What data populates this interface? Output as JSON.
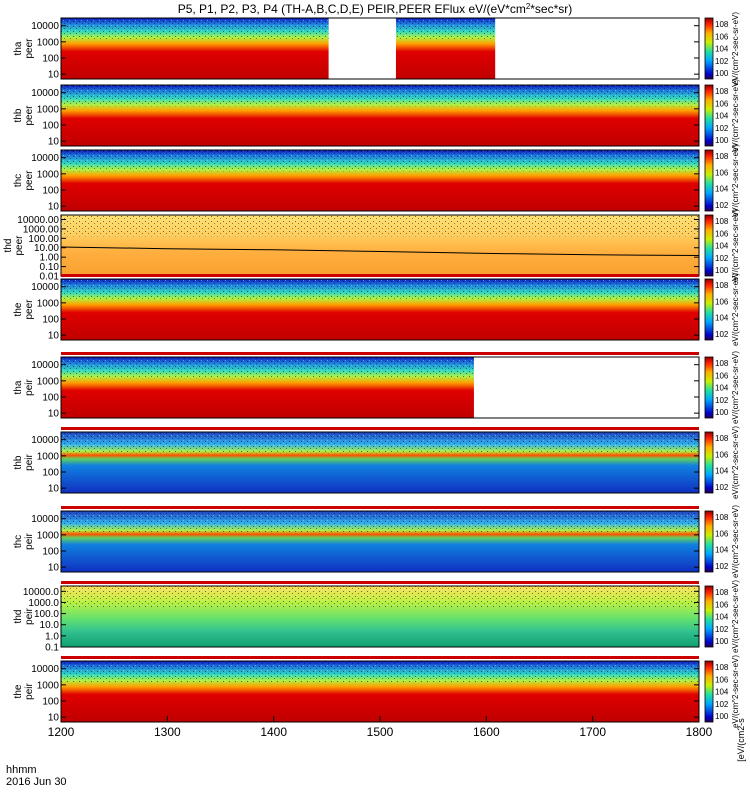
{
  "title": "P5, P1, P2, P3, P4 (TH-A,B,C,D,E) PEIR,PEER EFlux eV/(eV*cm",
  "title_sup": "2",
  "title_tail": "*sec*sr)",
  "colorbar_title": "eV/(cm^2-sec-sr-eV)",
  "colorbar_units_bottom": "[eV/(cm2-s",
  "time_axis": {
    "label_line1": "hhmm",
    "label_line2": "2016 Jun 30",
    "ticks": [
      "1200",
      "1300",
      "1400",
      "1500",
      "1600",
      "1700",
      "1800"
    ]
  },
  "colors": {
    "background": "#ffffff",
    "saturated": "#cc0000",
    "jet_low": "#00008b",
    "jet_high": "#8b0000"
  },
  "chart_data": {
    "type": "heatmap",
    "x_range": [
      "12:00",
      "18:00"
    ],
    "panels": [
      {
        "id": "tha_peer",
        "ylabel": [
          "tha",
          "peer"
        ],
        "yticks": [
          "10",
          "100",
          "1000",
          "10000"
        ],
        "ylim": [
          5,
          30000
        ],
        "scale": "log",
        "colorbar": {
          "ticks": [
            "10^8",
            "10^6",
            "10^4",
            "10^2",
            "10^0"
          ],
          "range": [
            "10^0",
            "10^8"
          ]
        },
        "data_gaps": [
          [
            "14:31",
            "15:09"
          ],
          [
            "16:05",
            "18:00"
          ]
        ],
        "has_flag_bar": false
      },
      {
        "id": "thb_peer",
        "ylabel": [
          "thb",
          "peer"
        ],
        "yticks": [
          "10",
          "100",
          "1000",
          "10000"
        ],
        "ylim": [
          5,
          30000
        ],
        "scale": "log",
        "colorbar": {
          "ticks": [
            "10^8",
            "10^6",
            "10^4",
            "10^2",
            "10^0"
          ],
          "range": [
            "10^0",
            "10^8"
          ]
        },
        "data_gaps": [],
        "has_flag_bar": false
      },
      {
        "id": "thc_peer",
        "ylabel": [
          "thc",
          "peer"
        ],
        "yticks": [
          "10",
          "100",
          "1000",
          "10000"
        ],
        "ylim": [
          5,
          30000
        ],
        "scale": "log",
        "colorbar": {
          "ticks": [
            "10^8",
            "10^6",
            "10^4",
            "10^2"
          ],
          "range": [
            "10^2",
            "10^8"
          ]
        },
        "data_gaps": [],
        "has_flag_bar": false
      },
      {
        "id": "thd_peer",
        "ylabel": [
          "thd",
          "peer"
        ],
        "yticks": [
          "0.01",
          "0.10",
          "1.00",
          "10.00",
          "100.00",
          "1000.00",
          "10000.00"
        ],
        "ylim": [
          0.01,
          30000
        ],
        "scale": "log",
        "colorbar": {
          "ticks": [
            "10^8",
            "10^6",
            "10^4",
            "10^2",
            "10^0"
          ],
          "range": [
            "10^0",
            "10^8"
          ]
        },
        "data_gaps": [],
        "has_flag_bar": false,
        "overlay_line": {
          "x": [
            "12:00",
            "13:00",
            "14:00",
            "15:00",
            "16:00",
            "17:00",
            "18:00"
          ],
          "y": [
            12,
            8,
            6,
            4,
            2.5,
            1.8,
            1.5
          ]
        }
      },
      {
        "id": "the_peer",
        "ylabel": [
          "the",
          "peer"
        ],
        "yticks": [
          "10",
          "100",
          "1000",
          "10000"
        ],
        "ylim": [
          5,
          30000
        ],
        "scale": "log",
        "colorbar": {
          "ticks": [
            "10^8",
            "10^6",
            "10^4",
            "10^2"
          ],
          "range": [
            "10^2",
            "10^8"
          ]
        },
        "data_gaps": [],
        "has_flag_bar": true
      },
      {
        "id": "tha_peir",
        "ylabel": [
          "tha",
          "peir"
        ],
        "yticks": [
          "10",
          "100",
          "1000",
          "10000"
        ],
        "ylim": [
          5,
          30000
        ],
        "scale": "log",
        "colorbar": {
          "ticks": [
            "10^8",
            "10^6",
            "10^4",
            "10^2",
            "10^0"
          ],
          "range": [
            "10^0",
            "10^8"
          ]
        },
        "data_gaps": [
          [
            "15:53",
            "18:00"
          ]
        ],
        "has_flag_bar": true
      },
      {
        "id": "thb_peir",
        "ylabel": [
          "thb",
          "peir"
        ],
        "yticks": [
          "10",
          "100",
          "1000",
          "10000"
        ],
        "ylim": [
          5,
          30000
        ],
        "scale": "log",
        "colorbar": {
          "ticks": [
            "10^8",
            "10^6",
            "10^4",
            "10^2"
          ],
          "range": [
            "10^2",
            "10^8"
          ]
        },
        "data_gaps": [],
        "has_flag_bar": true
      },
      {
        "id": "thc_peir",
        "ylabel": [
          "thc",
          "peir"
        ],
        "yticks": [
          "10",
          "100",
          "1000",
          "10000"
        ],
        "ylim": [
          5,
          30000
        ],
        "scale": "log",
        "colorbar": {
          "ticks": [
            "10^8",
            "10^6",
            "10^4",
            "10^2"
          ],
          "range": [
            "10^2",
            "10^8"
          ]
        },
        "data_gaps": [],
        "has_flag_bar": true
      },
      {
        "id": "thd_peir",
        "ylabel": [
          "thd",
          "peir"
        ],
        "yticks": [
          "0.1",
          "1.0",
          "10.0",
          "100.0",
          "1000.0",
          "10000.0"
        ],
        "ylim": [
          0.1,
          30000
        ],
        "scale": "log",
        "colorbar": {
          "ticks": [
            "10^8",
            "10^6",
            "10^4",
            "10^2",
            "10^0"
          ],
          "range": [
            "10^0",
            "10^8"
          ]
        },
        "data_gaps": [],
        "has_flag_bar": true
      },
      {
        "id": "the_peir",
        "ylabel": [
          "the",
          "peir"
        ],
        "yticks": [
          "10",
          "100",
          "1000",
          "10000"
        ],
        "ylim": [
          5,
          30000
        ],
        "scale": "log",
        "colorbar": {
          "ticks": [
            "10^8",
            "10^6",
            "10^4",
            "10^2",
            "10^0"
          ],
          "range": [
            "10^0",
            "10^8"
          ]
        },
        "data_gaps": [],
        "has_flag_bar": true
      }
    ]
  }
}
